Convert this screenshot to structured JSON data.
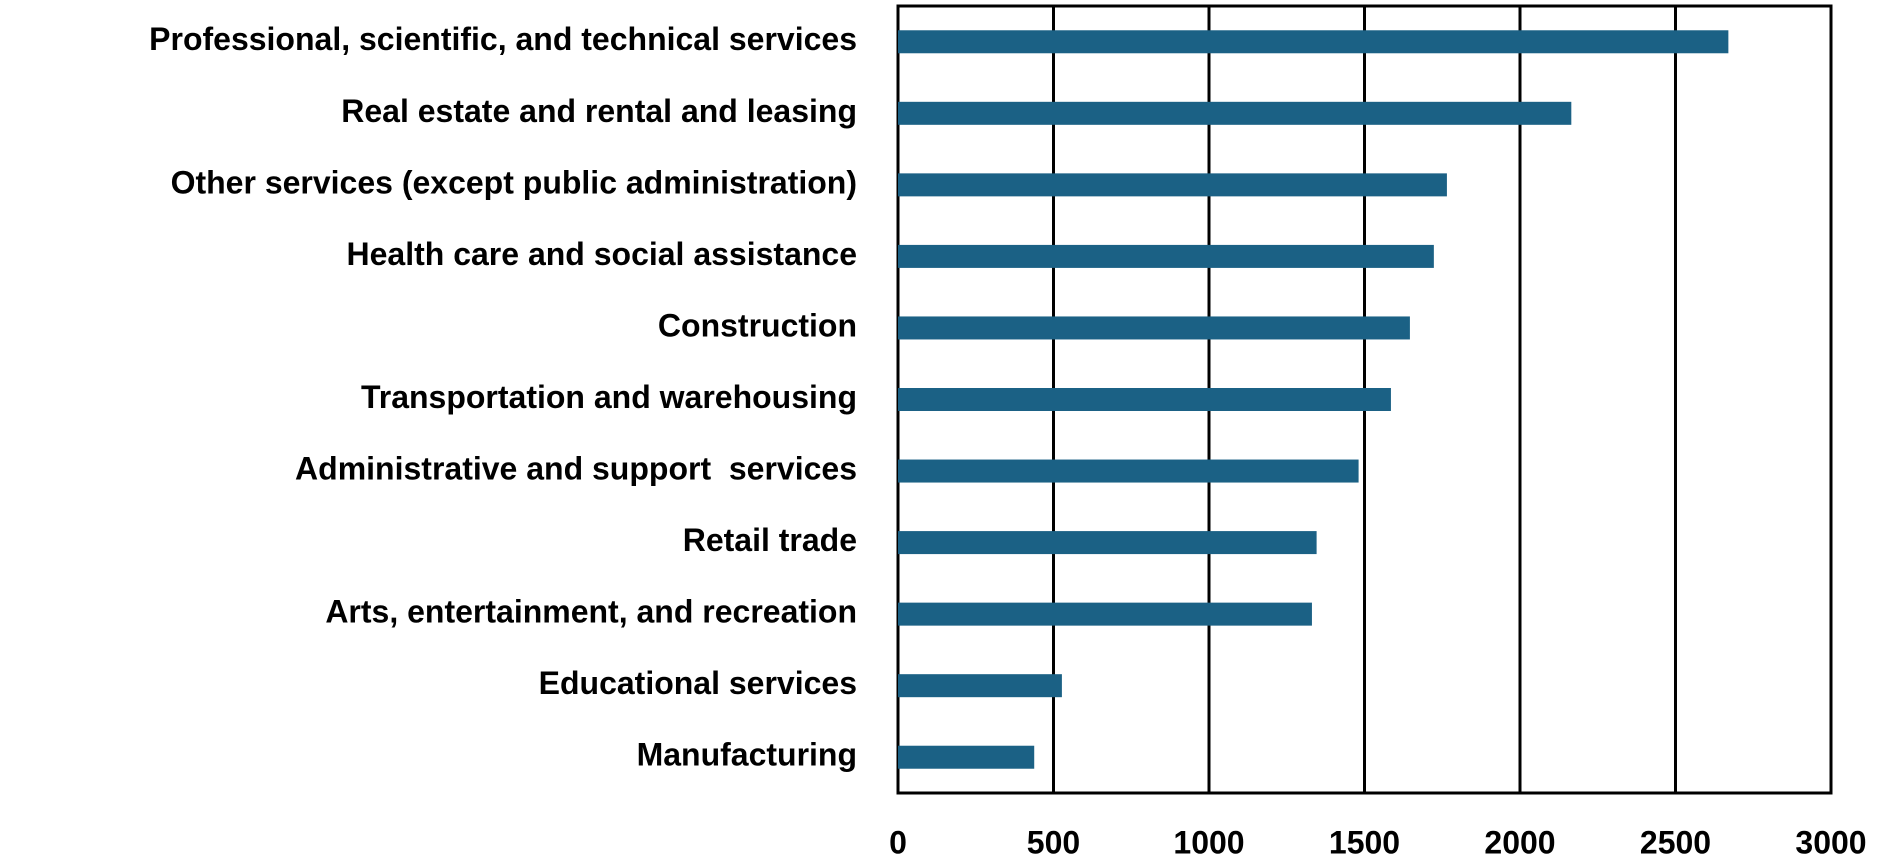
{
  "chart_data": {
    "type": "barh",
    "categories": [
      "Professional, scientific, and technical services",
      "Real estate and rental and leasing",
      "Other services (except public administration)",
      "Health care and social assistance",
      "Construction",
      "Transportation and warehousing",
      "Administrative and support  services",
      "Retail trade",
      "Arts, entertainment, and recreation",
      "Educational services",
      "Manufacturing"
    ],
    "values": [
      2670,
      2165,
      1765,
      1723,
      1646,
      1585,
      1481,
      1346,
      1331,
      527,
      438
    ],
    "color": "#1b6185",
    "xlim": [
      0,
      3000
    ],
    "xticks": [
      0,
      500,
      1000,
      1500,
      2000,
      2500,
      3000
    ],
    "grid": true
  }
}
